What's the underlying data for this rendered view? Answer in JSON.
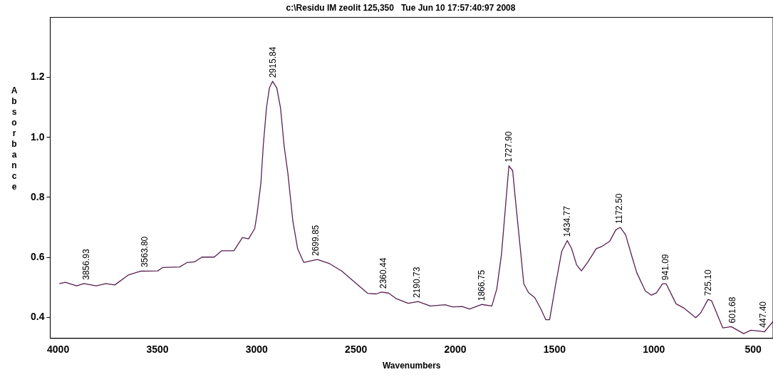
{
  "chart_data": {
    "type": "line",
    "title": "c:\\Residu IM zeolit 125,350   Tue Jun 10 17:57:40:97 2008",
    "xlabel": "Wavenumbers",
    "ylabel": "Absorbance",
    "xlim": [
      4040,
      400
    ],
    "ylim": [
      0.33,
      1.4
    ],
    "xticks": [
      4000,
      3500,
      3000,
      2500,
      2000,
      1500,
      1000,
      500
    ],
    "yticks": [
      {
        "value": 0.4,
        "label": "0.4"
      },
      {
        "value": 0.6,
        "label": "0.6"
      },
      {
        "value": 0.8,
        "label": "0.8"
      },
      {
        "value": 1,
        "label": "1.0"
      },
      {
        "value": 1.2,
        "label": "1.2"
      }
    ],
    "grid": false,
    "legend": false,
    "marker": "none",
    "line_style": "solid",
    "series": [
      {
        "color": "#5a1e50",
        "x": [
          3994,
          3963,
          3907,
          3870,
          3808,
          3759,
          3715,
          3647,
          3586,
          3499,
          3474,
          3388,
          3350,
          3313,
          3276,
          3214,
          3177,
          3115,
          3072,
          3041,
          3010,
          2998,
          2979,
          2967,
          2951,
          2936,
          2920,
          2899,
          2880,
          2862,
          2843,
          2818,
          2794,
          2763,
          2738,
          2695,
          2633,
          2571,
          2497,
          2441,
          2398,
          2373,
          2336,
          2299,
          2237,
          2187,
          2126,
          2051,
          2014,
          1965,
          1928,
          1866,
          1816,
          1791,
          1767,
          1748,
          1730,
          1711,
          1699,
          1680,
          1655,
          1631,
          1600,
          1569,
          1544,
          1525,
          1494,
          1464,
          1436,
          1414,
          1389,
          1365,
          1334,
          1290,
          1260,
          1222,
          1191,
          1169,
          1142,
          1111,
          1086,
          1043,
          1012,
          987,
          956,
          938,
          888,
          851,
          789,
          764,
          727,
          709,
          653,
          610,
          548,
          511,
          468,
          443,
          400
        ],
        "values": [
          0.513,
          0.517,
          0.505,
          0.513,
          0.505,
          0.513,
          0.508,
          0.541,
          0.554,
          0.555,
          0.566,
          0.568,
          0.583,
          0.585,
          0.601,
          0.601,
          0.622,
          0.622,
          0.666,
          0.662,
          0.696,
          0.746,
          0.847,
          0.972,
          1.098,
          1.165,
          1.187,
          1.165,
          1.098,
          0.972,
          0.88,
          0.721,
          0.629,
          0.583,
          0.587,
          0.593,
          0.579,
          0.554,
          0.512,
          0.48,
          0.478,
          0.484,
          0.481,
          0.463,
          0.447,
          0.453,
          0.438,
          0.442,
          0.435,
          0.436,
          0.428,
          0.443,
          0.438,
          0.495,
          0.612,
          0.763,
          0.905,
          0.889,
          0.805,
          0.679,
          0.512,
          0.482,
          0.466,
          0.428,
          0.392,
          0.392,
          0.512,
          0.62,
          0.656,
          0.629,
          0.575,
          0.555,
          0.583,
          0.629,
          0.637,
          0.654,
          0.692,
          0.7,
          0.675,
          0.604,
          0.549,
          0.488,
          0.474,
          0.482,
          0.512,
          0.512,
          0.445,
          0.432,
          0.399,
          0.415,
          0.46,
          0.455,
          0.365,
          0.369,
          0.346,
          0.357,
          0.354,
          0.352,
          0.386
        ]
      }
    ],
    "annotations": [
      {
        "text": "3856.93",
        "x": 3856.93,
        "y": 0.513
      },
      {
        "text": "3563.80",
        "x": 3563.8,
        "y": 0.555
      },
      {
        "text": "2915.84",
        "x": 2915.84,
        "y": 1.187
      },
      {
        "text": "2699.85",
        "x": 2699.85,
        "y": 0.593
      },
      {
        "text": "2360.44",
        "x": 2360.44,
        "y": 0.484
      },
      {
        "text": "2190.73",
        "x": 2190.73,
        "y": 0.453
      },
      {
        "text": "1866.75",
        "x": 1866.75,
        "y": 0.443
      },
      {
        "text": "1727.90",
        "x": 1727.9,
        "y": 0.905
      },
      {
        "text": "1434.77",
        "x": 1434.77,
        "y": 0.656
      },
      {
        "text": "1172.50",
        "x": 1172.5,
        "y": 0.7
      },
      {
        "text": "941.09",
        "x": 941.09,
        "y": 0.512
      },
      {
        "text": "725.10",
        "x": 725.1,
        "y": 0.46
      },
      {
        "text": "601.68",
        "x": 601.68,
        "y": 0.369
      },
      {
        "text": "447.40",
        "x": 447.4,
        "y": 0.354
      }
    ]
  }
}
